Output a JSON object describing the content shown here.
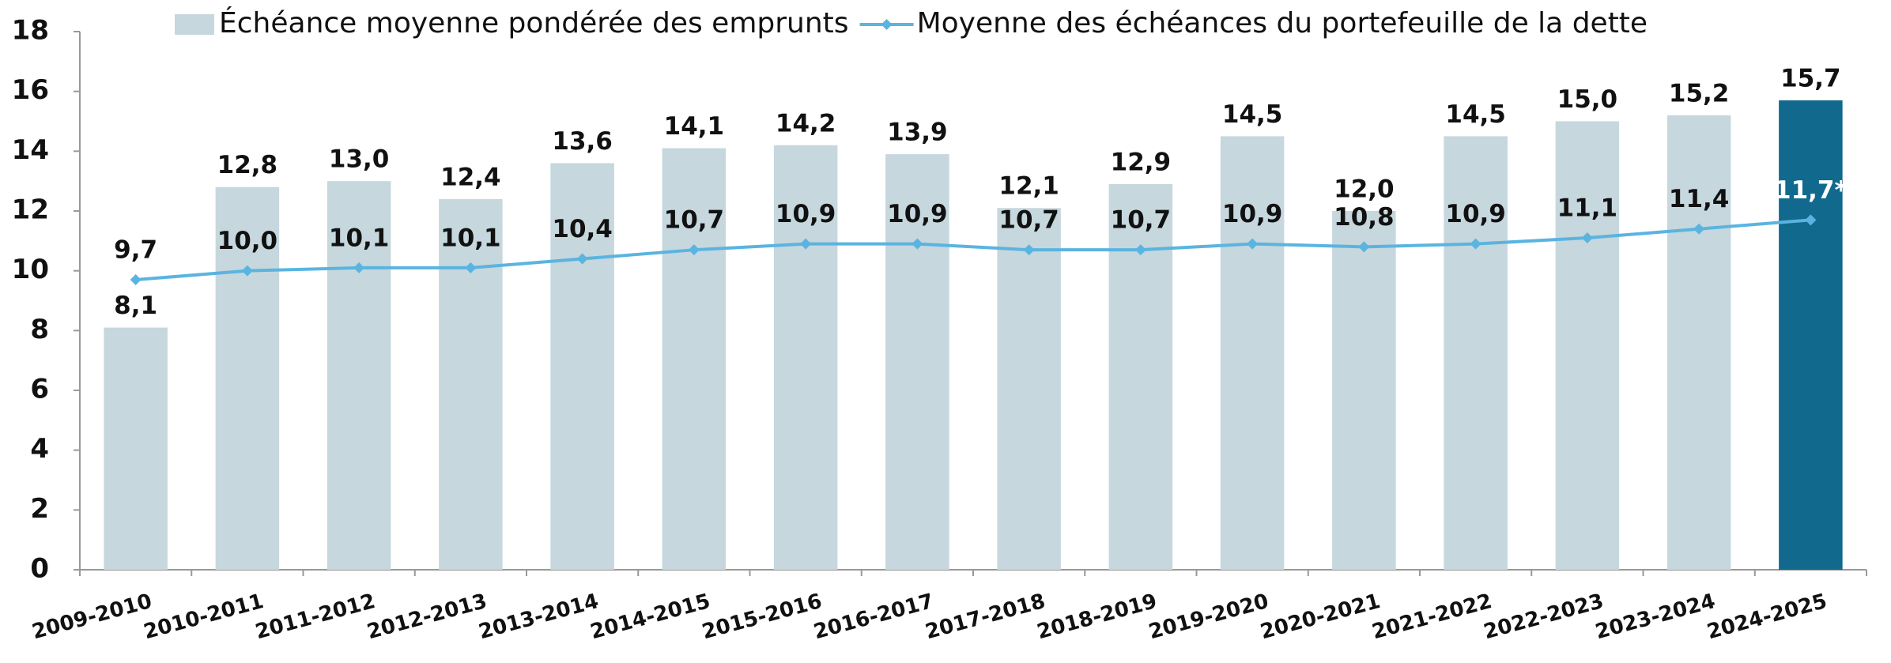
{
  "chart_data": {
    "type": "bar_line",
    "categories": [
      "2009-2010",
      "2010-2011",
      "2011-2012",
      "2012-2013",
      "2013-2014",
      "2014-2015",
      "2015-2016",
      "2016-2017",
      "2017-2018",
      "2018-2019",
      "2019-2020",
      "2020-2021",
      "2021-2022",
      "2022-2023",
      "2023-2024",
      "2024-2025"
    ],
    "series": [
      {
        "name": "Échéance moyenne pondérée des emprunts",
        "type": "bar",
        "color": "#c6d7de",
        "colors": [
          "#c6d7de",
          "#c6d7de",
          "#c6d7de",
          "#c6d7de",
          "#c6d7de",
          "#c6d7de",
          "#c6d7de",
          "#c6d7de",
          "#c6d7de",
          "#c6d7de",
          "#c6d7de",
          "#c6d7de",
          "#c6d7de",
          "#c6d7de",
          "#c6d7de",
          "#11698e"
        ],
        "values": [
          8.1,
          12.8,
          13.0,
          12.4,
          13.6,
          14.1,
          14.2,
          13.9,
          12.1,
          12.9,
          14.5,
          12.0,
          14.5,
          15.0,
          15.2,
          15.7
        ],
        "value_labels": [
          "8,1",
          "12,8",
          "13,0",
          "12,4",
          "13,6",
          "14,1",
          "14,2",
          "13,9",
          "12,1",
          "12,9",
          "14,5",
          "12,0",
          "14,5",
          "15,0",
          "15,2",
          "15,7"
        ]
      },
      {
        "name": "Moyenne des échéances du portefeuille de la dette",
        "type": "line",
        "color": "#5ab4e0",
        "values": [
          9.7,
          10.0,
          10.1,
          10.1,
          10.4,
          10.7,
          10.9,
          10.9,
          10.7,
          10.7,
          10.9,
          10.8,
          10.9,
          11.1,
          11.4,
          11.7
        ],
        "value_labels": [
          "9,7",
          "10,0",
          "10,1",
          "10,1",
          "10,4",
          "10,7",
          "10,9",
          "10,9",
          "10,7",
          "10,7",
          "10,9",
          "10,8",
          "10,9",
          "11,1",
          "11,4",
          "11,7*"
        ]
      }
    ],
    "ylim": [
      0,
      18
    ],
    "yticks": [
      0,
      2,
      4,
      6,
      8,
      10,
      12,
      14,
      16,
      18
    ],
    "legend": "top"
  }
}
